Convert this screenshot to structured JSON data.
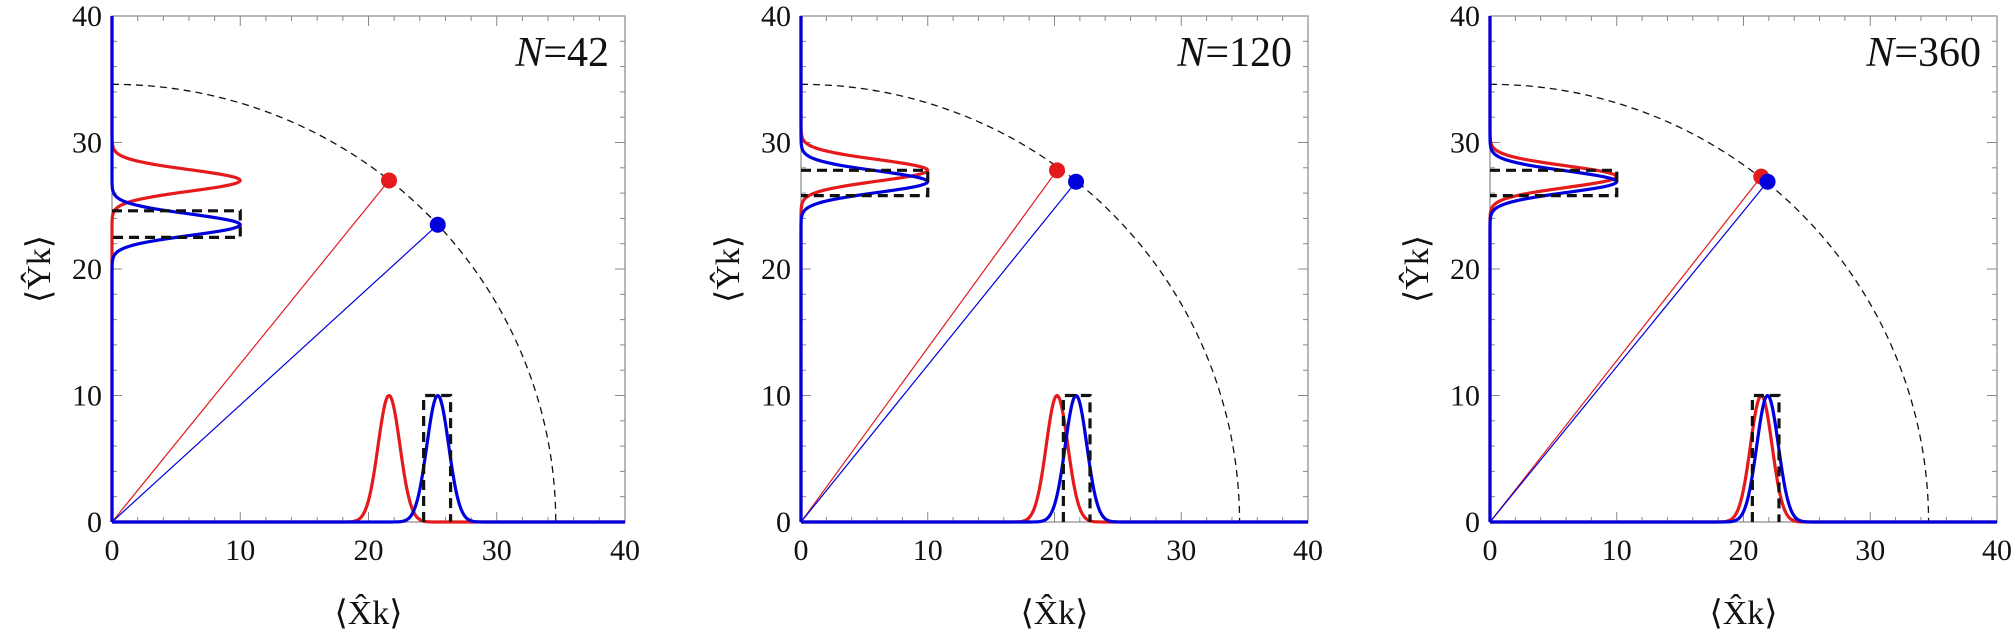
{
  "chart_data": [
    {
      "type": "line",
      "panel_label": "N=42",
      "label_var": "N",
      "label_val": "42",
      "xlabel": "⟨X̂k⟩",
      "ylabel": "⟨Ŷk⟩",
      "xlim": [
        0,
        40
      ],
      "ylim": [
        0,
        40
      ],
      "x_ticks": [
        0,
        10,
        20,
        30,
        40
      ],
      "y_ticks": [
        0,
        10,
        20,
        30,
        40
      ],
      "circle_radius": 34.6,
      "points": [
        {
          "color": "#e41a1c",
          "x": 21.6,
          "y": 27.0
        },
        {
          "color": "#0000dd",
          "x": 25.4,
          "y": 23.5
        }
      ],
      "x_distributions": [
        {
          "color": "#e41a1c",
          "mean": 21.6,
          "sigma": 0.85,
          "height": 10
        },
        {
          "color": "#0000dd",
          "mean": 25.4,
          "sigma": 0.85,
          "height": 10
        }
      ],
      "y_distributions": [
        {
          "color": "#e41a1c",
          "mean": 27.0,
          "sigma": 0.85,
          "height": 10
        },
        {
          "color": "#0000dd",
          "mean": 23.5,
          "sigma": 0.85,
          "height": 10
        }
      ],
      "x_box": {
        "x0": 24.3,
        "x1": 26.4,
        "top": 10
      },
      "y_box": {
        "y0": 22.5,
        "y1": 24.6,
        "right": 10
      }
    },
    {
      "type": "line",
      "panel_label": "N=120",
      "label_var": "N",
      "label_val": "120",
      "xlabel": "⟨X̂k⟩",
      "ylabel": "⟨Ŷk⟩",
      "xlim": [
        0,
        40
      ],
      "ylim": [
        0,
        40
      ],
      "x_ticks": [
        0,
        10,
        20,
        30,
        40
      ],
      "y_ticks": [
        0,
        10,
        20,
        30,
        40
      ],
      "circle_radius": 34.6,
      "points": [
        {
          "color": "#e41a1c",
          "x": 20.2,
          "y": 27.8
        },
        {
          "color": "#0000dd",
          "x": 21.7,
          "y": 26.9
        }
      ],
      "x_distributions": [
        {
          "color": "#e41a1c",
          "mean": 20.2,
          "sigma": 0.85,
          "height": 10
        },
        {
          "color": "#0000dd",
          "mean": 21.7,
          "sigma": 0.85,
          "height": 10
        }
      ],
      "y_distributions": [
        {
          "color": "#e41a1c",
          "mean": 27.8,
          "sigma": 0.85,
          "height": 10
        },
        {
          "color": "#0000dd",
          "mean": 26.9,
          "sigma": 0.85,
          "height": 10
        }
      ],
      "x_box": {
        "x0": 20.7,
        "x1": 22.8,
        "top": 10
      },
      "y_box": {
        "y0": 25.8,
        "y1": 27.8,
        "right": 10
      }
    },
    {
      "type": "line",
      "panel_label": "N=360",
      "label_var": "N",
      "label_val": "360",
      "xlabel": "⟨X̂k⟩",
      "ylabel": "⟨Ŷk⟩",
      "xlim": [
        0,
        40
      ],
      "ylim": [
        0,
        40
      ],
      "x_ticks": [
        0,
        10,
        20,
        30,
        40
      ],
      "y_ticks": [
        0,
        10,
        20,
        30,
        40
      ],
      "circle_radius": 34.6,
      "points": [
        {
          "color": "#e41a1c",
          "x": 21.4,
          "y": 27.3
        },
        {
          "color": "#0000dd",
          "x": 21.9,
          "y": 26.9
        }
      ],
      "x_distributions": [
        {
          "color": "#e41a1c",
          "mean": 21.4,
          "sigma": 0.85,
          "height": 10
        },
        {
          "color": "#0000dd",
          "mean": 21.9,
          "sigma": 0.85,
          "height": 10
        }
      ],
      "y_distributions": [
        {
          "color": "#e41a1c",
          "mean": 27.3,
          "sigma": 0.85,
          "height": 10
        },
        {
          "color": "#0000dd",
          "mean": 26.9,
          "sigma": 0.85,
          "height": 10
        }
      ],
      "x_box": {
        "x0": 20.7,
        "x1": 22.8,
        "top": 10
      },
      "y_box": {
        "y0": 25.8,
        "y1": 27.8,
        "right": 10
      }
    }
  ]
}
